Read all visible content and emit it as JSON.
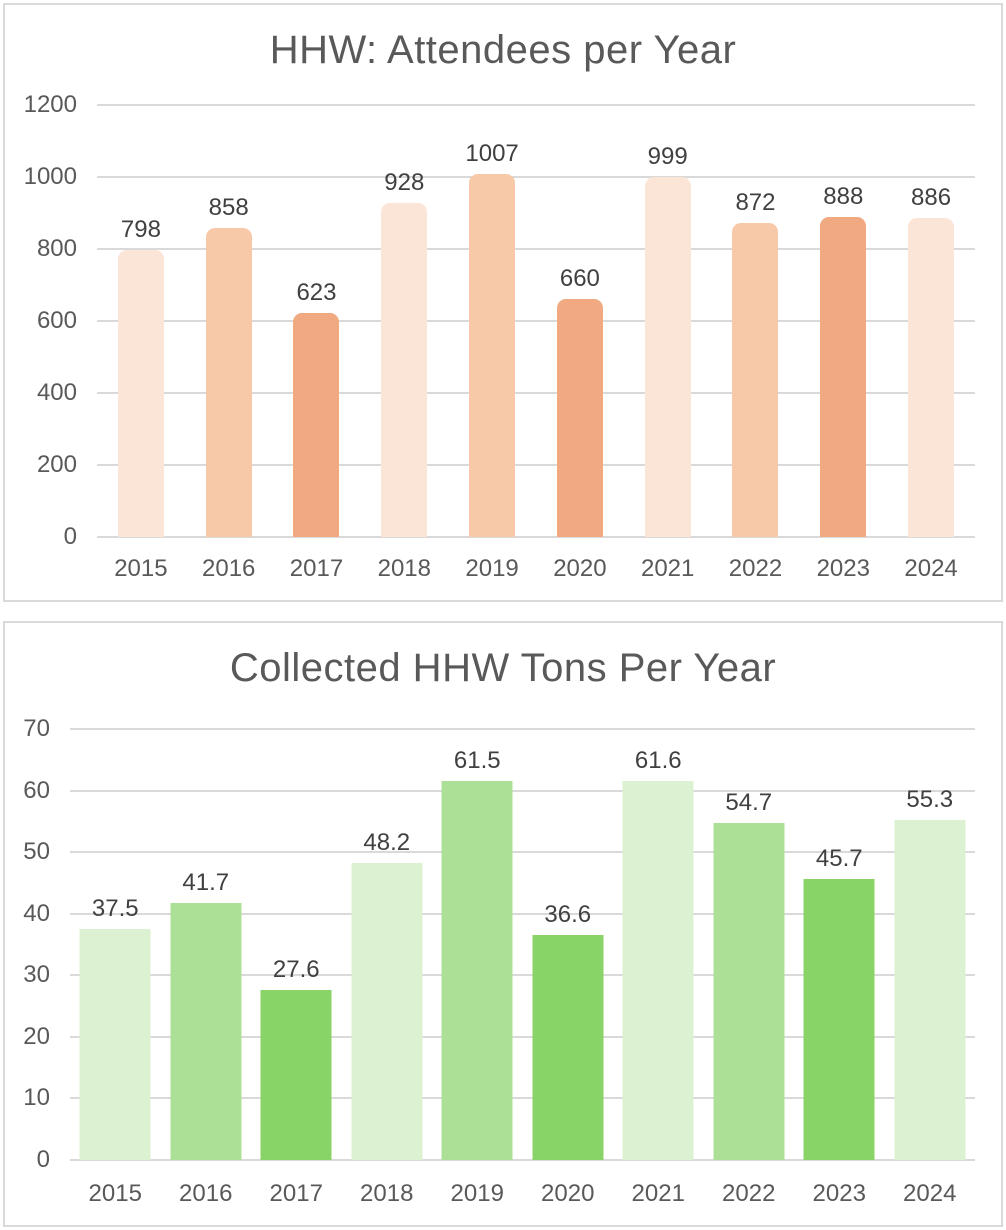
{
  "chart_data": [
    {
      "type": "bar",
      "title": "HHW: Attendees per Year",
      "categories": [
        "2015",
        "2016",
        "2017",
        "2018",
        "2019",
        "2020",
        "2021",
        "2022",
        "2023",
        "2024"
      ],
      "values": [
        798,
        858,
        623,
        928,
        1007,
        660,
        999,
        872,
        888,
        886
      ],
      "data_labels": [
        "798",
        "858",
        "623",
        "928",
        "1007",
        "660",
        "999",
        "872",
        "888",
        "886"
      ],
      "xlabel": "",
      "ylabel": "",
      "ylim": [
        0,
        1200
      ],
      "yticks": [
        "0",
        "200",
        "400",
        "600",
        "800",
        "1000",
        "1200"
      ],
      "grid": "horizontal",
      "legend": "none",
      "bar_corner": "rounded-top",
      "bar_colors": [
        "#FBE5D6",
        "#F7C9A9",
        "#F1A981",
        "#FBE5D6",
        "#F7C9A9",
        "#F1A981",
        "#FBE5D6",
        "#F7C9A9",
        "#F1A981",
        "#FBE5D6"
      ]
    },
    {
      "type": "bar",
      "title": "Collected HHW Tons Per Year",
      "categories": [
        "2015",
        "2016",
        "2017",
        "2018",
        "2019",
        "2020",
        "2021",
        "2022",
        "2023",
        "2024"
      ],
      "values": [
        37.5,
        41.7,
        27.6,
        48.2,
        61.5,
        36.6,
        61.6,
        54.7,
        45.7,
        55.3
      ],
      "data_labels": [
        "37.5",
        "41.7",
        "27.6",
        "48.2",
        "61.5",
        "36.6",
        "61.6",
        "54.7",
        "45.7",
        "55.3"
      ],
      "xlabel": "",
      "ylabel": "",
      "ylim": [
        0,
        70
      ],
      "yticks": [
        "0",
        "10",
        "20",
        "30",
        "40",
        "50",
        "60",
        "70"
      ],
      "grid": "horizontal",
      "legend": "none",
      "bar_corner": "square",
      "bar_colors": [
        "#DBF1D1",
        "#ACE097",
        "#89D466",
        "#DBF1D1",
        "#ACE097",
        "#89D466",
        "#DBF1D1",
        "#ACE097",
        "#89D466",
        "#DBF1D1"
      ]
    }
  ],
  "styles": {
    "panel_border_color": "#D9D9D9",
    "gridline_color": "#D9D9D9",
    "title_color": "#595959",
    "axis_label_color": "#595959",
    "data_label_color": "#404040",
    "background": "#FFFFFF"
  }
}
